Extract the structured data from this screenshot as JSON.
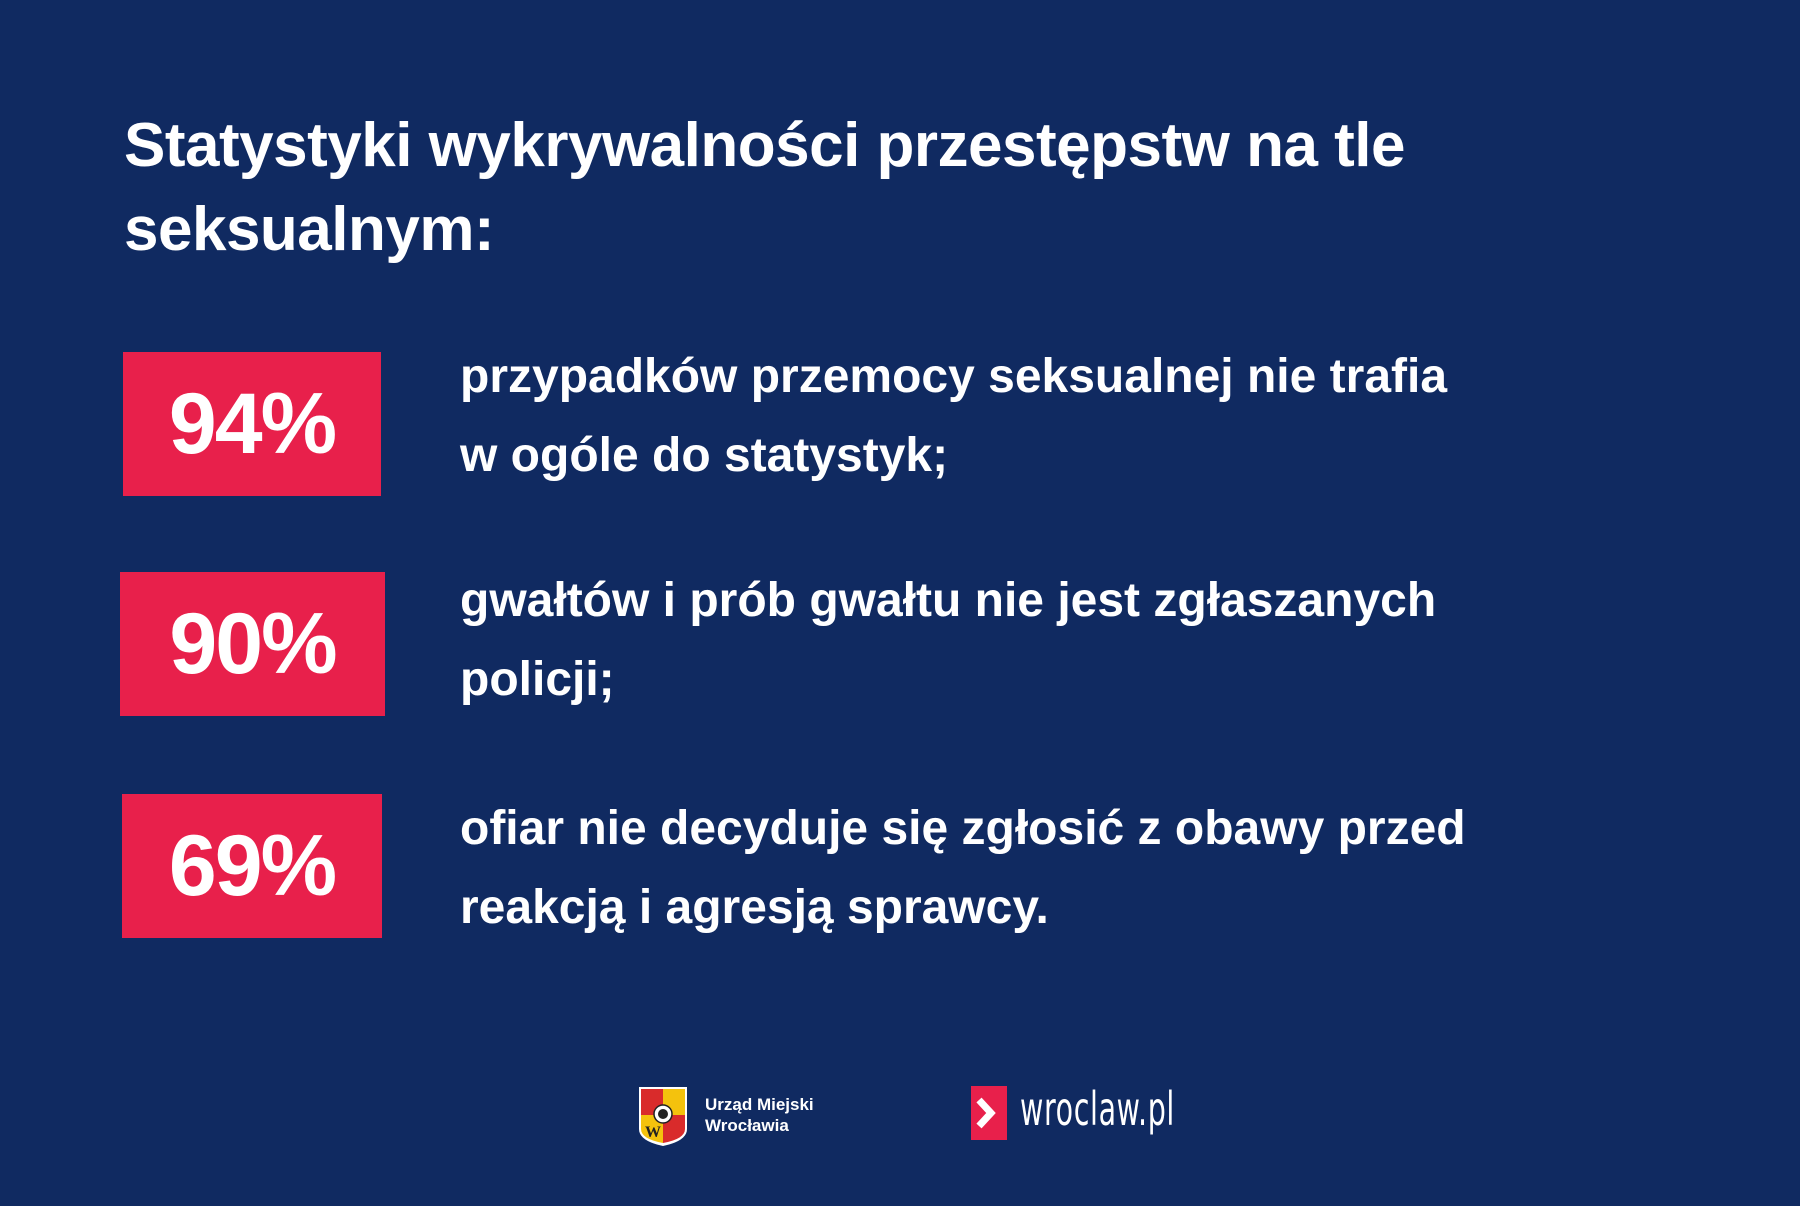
{
  "title": "Statystyki wykrywalności przestępstw na tle seksualnym:",
  "stats": [
    {
      "value": "94%",
      "text_line1": "przypadków przemocy seksualnej nie trafia",
      "text_line2": "w ogóle do statystyk;"
    },
    {
      "value": "90%",
      "text_line1": "gwałtów i prób gwałtu nie jest zgłaszanych",
      "text_line2": "policji;"
    },
    {
      "value": "69%",
      "text_line1": "ofiar nie decyduje się zgłosić z obawy przed",
      "text_line2": "reakcją i agresją sprawcy."
    }
  ],
  "footer": {
    "org_line1": "Urząd Miejski",
    "org_line2": "Wrocławia",
    "site": "wroclaw.pl"
  },
  "colors": {
    "background": "#102a61",
    "accent": "#e8204b"
  }
}
